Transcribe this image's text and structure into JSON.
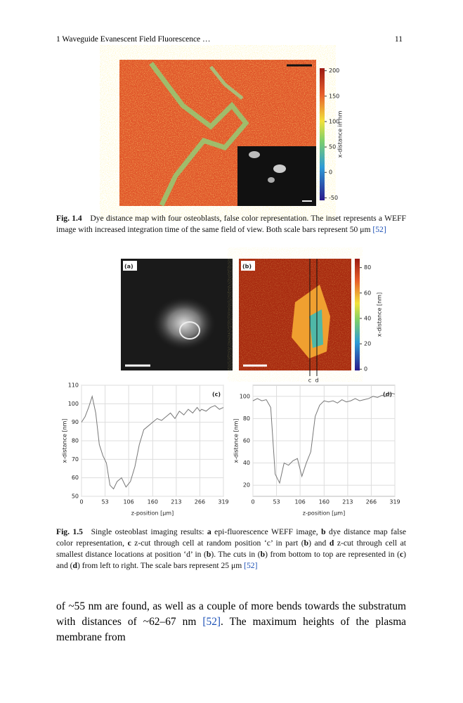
{
  "header": {
    "chapter": "1   Waveguide Evanescent Field Fluorescence …",
    "page": "11"
  },
  "figure_1_4": {
    "colorbar": {
      "label": "x-distance in nm",
      "lim": [
        -55,
        205
      ],
      "ticks": [
        200,
        150,
        100,
        50,
        0,
        -50
      ]
    },
    "caption": {
      "label": "Fig. 1.4",
      "segments": [
        {
          "text": "Dye distance map with four osteoblasts, false color representation. The inset represents a WEFF image with increased integration time of the same field of view. Both scale bars represent 50 μm "
        },
        {
          "text": "[52]",
          "style": "ref"
        }
      ]
    }
  },
  "figure_1_5": {
    "panels": [
      "(a)",
      "(b)"
    ],
    "cut_labels": [
      "c",
      "d"
    ],
    "colorbar": {
      "label": "x-distance [nm]",
      "lim": [
        -1,
        87
      ],
      "ticks": [
        80,
        60,
        40,
        20,
        0
      ]
    },
    "plots": [
      {
        "label": "(c)",
        "xlabel": "z-position [µm]",
        "ylabel": "x-distance [nm]",
        "xlim": [
          0,
          319
        ],
        "ylim": [
          50,
          110
        ],
        "xticks": [
          0,
          53,
          106,
          160,
          213,
          266,
          319
        ],
        "yticks": [
          50,
          60,
          70,
          80,
          90,
          100,
          110
        ],
        "x": [
          0,
          8,
          16,
          24,
          32,
          40,
          48,
          56,
          64,
          72,
          80,
          90,
          100,
          110,
          120,
          130,
          140,
          150,
          160,
          170,
          180,
          190,
          200,
          210,
          220,
          230,
          240,
          250,
          260,
          266,
          270,
          280,
          290,
          300,
          310,
          319
        ],
        "values": [
          90,
          93,
          98,
          104,
          95,
          78,
          72,
          68,
          56,
          54,
          58,
          60,
          55,
          58,
          66,
          78,
          86,
          88,
          90,
          92,
          91,
          93,
          95,
          92,
          96,
          94,
          97,
          95,
          98,
          96,
          97,
          96,
          98,
          99,
          97,
          98
        ]
      },
      {
        "label": "(d)",
        "xlabel": "z-position [µm]",
        "ylabel": "x-distance [nm]",
        "xlim": [
          0,
          319
        ],
        "ylim": [
          10,
          110
        ],
        "xticks": [
          0,
          53,
          106,
          160,
          213,
          266,
          319
        ],
        "yticks": [
          20,
          40,
          60,
          80,
          100
        ],
        "x": [
          0,
          10,
          20,
          30,
          40,
          50,
          60,
          70,
          80,
          90,
          100,
          110,
          120,
          130,
          140,
          150,
          160,
          170,
          180,
          190,
          200,
          210,
          220,
          230,
          240,
          250,
          260,
          270,
          280,
          290,
          300,
          310,
          319
        ],
        "values": [
          96,
          98,
          96,
          97,
          90,
          30,
          22,
          40,
          38,
          42,
          44,
          28,
          40,
          50,
          82,
          92,
          96,
          95,
          96,
          94,
          97,
          95,
          96,
          98,
          96,
          97,
          98,
          100,
          99,
          101,
          100,
          103,
          102
        ]
      }
    ],
    "caption": {
      "label": "Fig. 1.5",
      "segments": [
        {
          "text": "Single osteoblast imaging results: "
        },
        {
          "text": "a",
          "style": "b"
        },
        {
          "text": " epi-fluorescence WEFF image, "
        },
        {
          "text": "b",
          "style": "b"
        },
        {
          "text": " dye distance map false color representation, "
        },
        {
          "text": "c",
          "style": "b"
        },
        {
          "text": " z-cut through cell at random position ‘c’ in part ("
        },
        {
          "text": "b",
          "style": "b"
        },
        {
          "text": ") and "
        },
        {
          "text": "d",
          "style": "b"
        },
        {
          "text": " z-cut through cell at smallest distance locations at position ‘d’ in ("
        },
        {
          "text": "b",
          "style": "b"
        },
        {
          "text": "). The cuts in ("
        },
        {
          "text": "b",
          "style": "b"
        },
        {
          "text": ") from bottom to top are represented in ("
        },
        {
          "text": "c",
          "style": "b"
        },
        {
          "text": ") and ("
        },
        {
          "text": "d",
          "style": "b"
        },
        {
          "text": ") from left to right. The scale bars represent 25 μm "
        },
        {
          "text": "[52]",
          "style": "ref"
        }
      ]
    }
  },
  "body": {
    "segments": [
      {
        "text": "of ~55 nm are found, as well as a couple of more bends towards the substratum with distances of ~62–67 nm "
      },
      {
        "text": "[52]",
        "style": "ref"
      },
      {
        "text": ". The maximum heights of the plasma membrane from"
      }
    ]
  }
}
